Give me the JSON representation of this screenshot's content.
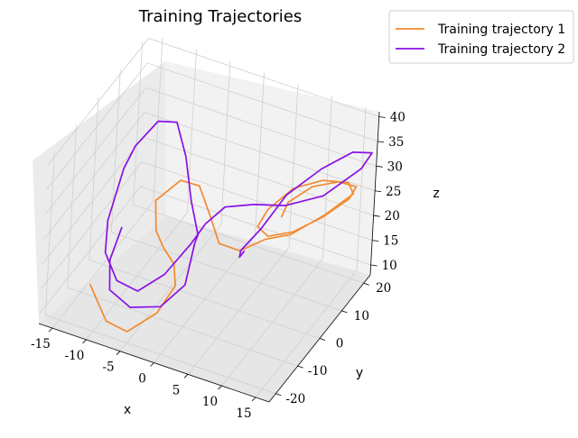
{
  "chart_data": {
    "type": "line",
    "projection": "3d",
    "title": "Training Trajectories",
    "xlabel": "x",
    "ylabel": "y",
    "zlabel": "z",
    "xlim": [
      -17,
      17
    ],
    "ylim": [
      -23,
      23
    ],
    "zlim": [
      8,
      41
    ],
    "xticks": [
      -15,
      -10,
      -5,
      0,
      5,
      10,
      15
    ],
    "yticks": [
      -20,
      -10,
      0,
      10,
      20
    ],
    "zticks": [
      10,
      15,
      20,
      25,
      30,
      35,
      40
    ],
    "grid": true,
    "legend": "upper-right outside axes",
    "series": [
      {
        "name": "Training trajectory 1",
        "color": "#f28a30",
        "points": [
          [
            -12.0,
            -15.8,
            14.2
          ],
          [
            -10.6,
            -17.5,
            13.2
          ],
          [
            -8.0,
            -20.5,
            11.3
          ],
          [
            -4.6,
            -21.5,
            11.3
          ],
          [
            -1.5,
            -17.9,
            14.5
          ],
          [
            -0.3,
            -13.6,
            18.2
          ],
          [
            -1.5,
            -10.9,
            20.6
          ],
          [
            -3.5,
            -9.6,
            22.1
          ],
          [
            -5.2,
            -8.0,
            23.9
          ],
          [
            -6.6,
            -4.3,
            27.3
          ],
          [
            -4.4,
            0.0,
            30.0
          ],
          [
            -1.8,
            0.5,
            29.8
          ],
          [
            0.6,
            -2.1,
            26.9
          ],
          [
            3.1,
            -4.8,
            23.4
          ],
          [
            5.9,
            -4.0,
            22.8
          ],
          [
            7.8,
            1.7,
            22.8
          ],
          [
            10.2,
            6.0,
            22.5
          ],
          [
            13.2,
            12.1,
            24.5
          ],
          [
            15.8,
            16.6,
            27.4
          ],
          [
            15.2,
            15.9,
            29.8
          ],
          [
            12.9,
            11.0,
            31.9
          ],
          [
            10.3,
            5.8,
            32.0
          ],
          [
            7.7,
            2.6,
            28.3
          ],
          [
            6.5,
            2.0,
            24.6
          ],
          [
            7.3,
            4.7,
            21.5
          ],
          [
            9.5,
            9.4,
            20.8
          ],
          [
            12.3,
            14.0,
            22.5
          ],
          [
            15.0,
            17.3,
            25.6
          ],
          [
            15.9,
            17.5,
            28.4
          ],
          [
            14.3,
            14.0,
            30.6
          ],
          [
            11.9,
            9.5,
            31.0
          ],
          [
            9.6,
            5.9,
            28.8
          ],
          [
            8.8,
            5.7,
            25.6
          ]
        ]
      },
      {
        "name": "Training trajectory 2",
        "color": "#8a10e6",
        "points": [
          [
            -10.0,
            -8.7,
            22.7
          ],
          [
            -10.2,
            -12.9,
            18.4
          ],
          [
            -9.0,
            -16.3,
            14.8
          ],
          [
            -5.1,
            -19.0,
            14.6
          ],
          [
            -0.9,
            -18.3,
            16.3
          ],
          [
            1.6,
            -15.3,
            20.2
          ],
          [
            1.0,
            -9.7,
            25.2
          ],
          [
            1.2,
            -9.0,
            26.6
          ],
          [
            -1.1,
            -5.5,
            30.5
          ],
          [
            -3.9,
            0.2,
            34.9
          ],
          [
            -6.9,
            5.0,
            37.8
          ],
          [
            -9.5,
            4.6,
            37.0
          ],
          [
            -11.7,
            1.6,
            32.7
          ],
          [
            -12.2,
            -1.8,
            29.8
          ],
          [
            -12.1,
            -8.6,
            23.1
          ],
          [
            -10.9,
            -13.0,
            19.6
          ],
          [
            -7.9,
            -16.7,
            17.4
          ],
          [
            -4.4,
            -18.1,
            17.7
          ],
          [
            -1.3,
            -15.9,
            21.3
          ],
          [
            1.0,
            -11.7,
            26.1
          ],
          [
            1.9,
            -8.0,
            28.6
          ],
          [
            3.3,
            -3.6,
            30.2
          ],
          [
            6.4,
            0.1,
            30.1
          ],
          [
            9.6,
            4.5,
            28.9
          ],
          [
            13.3,
            10.4,
            29.3
          ],
          [
            16.9,
            16.1,
            33.3
          ],
          [
            18.0,
            17.2,
            36.4
          ],
          [
            16.3,
            13.5,
            37.8
          ],
          [
            13.4,
            8.4,
            35.9
          ],
          [
            10.0,
            3.4,
            31.8
          ],
          [
            8.0,
            -1.1,
            26.7
          ],
          [
            6.0,
            -3.9,
            22.8
          ],
          [
            5.7,
            -3.3,
            21.0
          ],
          [
            5.5,
            -0.5,
            20.5
          ]
        ]
      }
    ]
  }
}
